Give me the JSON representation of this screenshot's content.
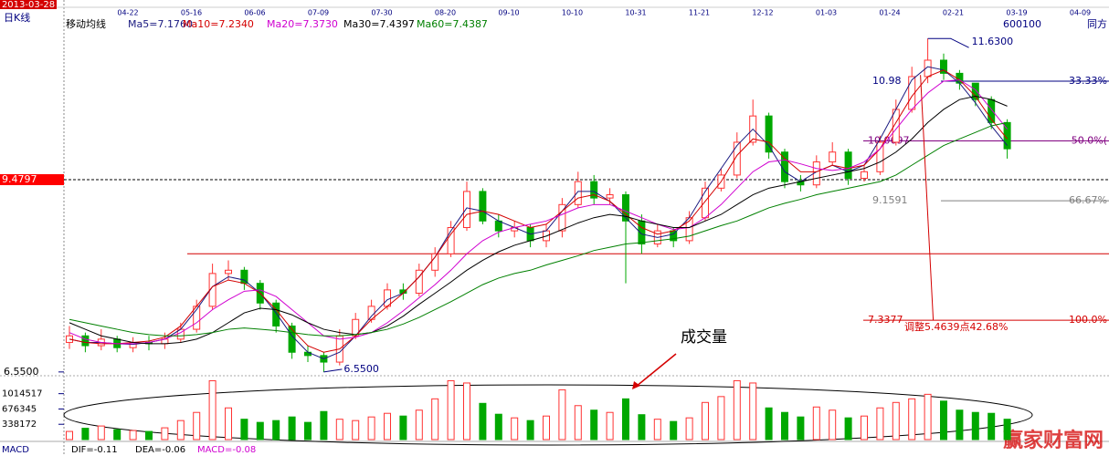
{
  "chart_data": {
    "type": "candlestick",
    "period": "日K线",
    "date": "2013-03-28",
    "ma_title": "移动均线",
    "code": "600100",
    "name": "同方",
    "x_labels": [
      "04-22",
      "05-16",
      "06-06",
      "07-09",
      "07-30",
      "08-20",
      "09-10",
      "10-10",
      "10-31",
      "11-21",
      "12-12",
      "01-03",
      "01-24",
      "02-21",
      "03-19",
      "04-09"
    ],
    "ylim": [
      6.52,
      11.8
    ],
    "yticks": [
      9.4797,
      {
        "value": 6.55,
        "label": "6.5500"
      }
    ],
    "up_color": "#ff3232",
    "down_color": "#00a800",
    "open": [
      7.0,
      7.1,
      6.95,
      7.05,
      6.92,
      7.0,
      6.98,
      7.05,
      7.2,
      7.55,
      8.05,
      8.1,
      7.9,
      7.6,
      7.25,
      6.85,
      6.8,
      6.7,
      7.1,
      7.35,
      7.55,
      7.8,
      7.75,
      8.1,
      8.35,
      8.75,
      9.3,
      8.85,
      8.7,
      8.75,
      8.55,
      8.7,
      9.1,
      9.45,
      9.2,
      9.25,
      8.85,
      8.5,
      8.7,
      8.55,
      8.9,
      9.35,
      9.55,
      10.05,
      10.45,
      9.9,
      9.45,
      9.4,
      9.75,
      9.9,
      9.5,
      9.6,
      10.05,
      10.55,
      11.05,
      11.3,
      11.1,
      10.95,
      10.7,
      10.35
    ],
    "high": [
      7.25,
      7.15,
      7.2,
      7.1,
      7.08,
      7.1,
      7.15,
      7.3,
      7.65,
      8.2,
      8.25,
      8.15,
      7.95,
      7.65,
      7.3,
      6.95,
      6.85,
      7.2,
      7.45,
      7.65,
      7.9,
      7.9,
      8.2,
      8.45,
      8.85,
      9.45,
      9.35,
      8.95,
      8.85,
      8.8,
      8.8,
      9.2,
      9.6,
      9.55,
      9.35,
      9.3,
      8.95,
      8.8,
      8.75,
      9.0,
      9.45,
      9.65,
      10.2,
      10.7,
      10.5,
      9.95,
      9.55,
      9.85,
      10.05,
      9.95,
      9.7,
      10.15,
      10.7,
      11.2,
      11.63,
      11.4,
      11.15,
      10.95,
      10.75,
      10.4
    ],
    "low": [
      6.9,
      6.85,
      6.88,
      6.85,
      6.85,
      6.88,
      6.9,
      7.0,
      7.15,
      7.5,
      7.95,
      7.8,
      7.5,
      7.15,
      6.75,
      6.7,
      6.55,
      6.65,
      7.05,
      7.3,
      7.5,
      7.65,
      7.7,
      8.0,
      8.3,
      8.7,
      8.8,
      8.6,
      8.6,
      8.45,
      8.45,
      8.6,
      9.05,
      9.1,
      9.1,
      7.9,
      8.35,
      8.45,
      8.45,
      8.5,
      8.85,
      9.3,
      9.5,
      10.0,
      9.8,
      9.35,
      9.3,
      9.35,
      9.7,
      9.4,
      9.45,
      9.55,
      10.0,
      10.5,
      10.95,
      11.0,
      10.85,
      10.6,
      10.25,
      9.8
    ],
    "close": [
      7.1,
      6.95,
      7.05,
      6.92,
      7.0,
      6.98,
      7.05,
      7.2,
      7.55,
      8.05,
      8.1,
      7.9,
      7.6,
      7.25,
      6.85,
      6.8,
      6.7,
      7.1,
      7.35,
      7.55,
      7.8,
      7.75,
      8.1,
      8.35,
      8.75,
      9.3,
      8.85,
      8.7,
      8.75,
      8.55,
      8.7,
      9.1,
      9.45,
      9.2,
      9.25,
      8.85,
      8.5,
      8.7,
      8.55,
      8.9,
      9.35,
      9.55,
      10.05,
      10.45,
      9.9,
      9.45,
      9.4,
      9.75,
      9.9,
      9.5,
      9.6,
      10.05,
      10.55,
      11.05,
      11.3,
      11.1,
      10.95,
      10.7,
      10.35,
      9.95
    ],
    "series": [
      {
        "name": "Ma5=7.1760",
        "color": "#1a1a80",
        "values": [
          7.05,
          7.0,
          7.0,
          6.98,
          6.97,
          7.0,
          7.05,
          7.2,
          7.5,
          7.85,
          8.0,
          7.95,
          7.75,
          7.45,
          7.1,
          6.85,
          6.75,
          6.85,
          7.1,
          7.4,
          7.65,
          7.75,
          8.0,
          8.3,
          8.7,
          9.05,
          9.0,
          8.85,
          8.75,
          8.65,
          8.7,
          9.0,
          9.3,
          9.3,
          9.15,
          8.9,
          8.65,
          8.6,
          8.65,
          8.9,
          9.3,
          9.65,
          10.0,
          10.25,
          10.0,
          9.6,
          9.45,
          9.6,
          9.7,
          9.6,
          9.7,
          10.1,
          10.55,
          11.0,
          11.2,
          11.15,
          10.95,
          10.65,
          10.3,
          10.0
        ]
      },
      {
        "name": "Ma10=7.2340",
        "color": "#d40000",
        "values": [
          7.05,
          7.0,
          6.98,
          6.98,
          7.0,
          7.02,
          7.08,
          7.25,
          7.55,
          7.85,
          7.95,
          7.9,
          7.75,
          7.5,
          7.2,
          6.95,
          6.85,
          6.9,
          7.1,
          7.35,
          7.55,
          7.75,
          8.0,
          8.3,
          8.65,
          8.95,
          9.0,
          8.95,
          8.85,
          8.75,
          8.8,
          9.0,
          9.2,
          9.25,
          9.15,
          8.95,
          8.75,
          8.65,
          8.7,
          8.85,
          9.15,
          9.45,
          9.85,
          10.1,
          10.05,
          9.8,
          9.6,
          9.6,
          9.7,
          9.65,
          9.7,
          9.95,
          10.35,
          10.75,
          11.05,
          11.15,
          11.0,
          10.75,
          10.4,
          10.1
        ]
      },
      {
        "name": "Ma20=7.3730",
        "color": "#d000d0",
        "values": [
          7.15,
          7.05,
          7.0,
          6.98,
          6.98,
          7.0,
          7.05,
          7.15,
          7.3,
          7.5,
          7.65,
          7.78,
          7.8,
          7.7,
          7.5,
          7.3,
          7.1,
          7.05,
          7.08,
          7.15,
          7.3,
          7.48,
          7.68,
          7.88,
          8.1,
          8.35,
          8.55,
          8.68,
          8.75,
          8.8,
          8.85,
          8.95,
          9.05,
          9.1,
          9.1,
          9.0,
          8.9,
          8.8,
          8.72,
          8.75,
          8.9,
          9.1,
          9.35,
          9.6,
          9.75,
          9.78,
          9.72,
          9.65,
          9.62,
          9.65,
          9.75,
          9.95,
          10.25,
          10.55,
          10.8,
          10.98,
          11.0,
          10.85,
          10.55,
          10.25
        ]
      },
      {
        "name": "Ma30=7.4397",
        "color": "#000000",
        "values": [
          7.3,
          7.2,
          7.1,
          7.05,
          7.0,
          6.98,
          6.98,
          7.0,
          7.05,
          7.15,
          7.3,
          7.45,
          7.52,
          7.5,
          7.42,
          7.3,
          7.2,
          7.15,
          7.12,
          7.15,
          7.25,
          7.4,
          7.58,
          7.75,
          7.92,
          8.1,
          8.25,
          8.38,
          8.48,
          8.55,
          8.62,
          8.72,
          8.82,
          8.9,
          8.95,
          8.92,
          8.85,
          8.8,
          8.75,
          8.75,
          8.85,
          8.95,
          9.1,
          9.25,
          9.35,
          9.4,
          9.45,
          9.5,
          9.55,
          9.6,
          9.65,
          9.75,
          9.9,
          10.1,
          10.35,
          10.55,
          10.7,
          10.75,
          10.7,
          10.6
        ]
      },
      {
        "name": "Ma60=7.4387",
        "color": "#008000",
        "values": [
          7.35,
          7.3,
          7.25,
          7.2,
          7.15,
          7.12,
          7.1,
          7.1,
          7.12,
          7.15,
          7.2,
          7.22,
          7.2,
          7.18,
          7.15,
          7.12,
          7.1,
          7.1,
          7.12,
          7.15,
          7.2,
          7.28,
          7.38,
          7.5,
          7.62,
          7.75,
          7.88,
          7.98,
          8.05,
          8.1,
          8.18,
          8.25,
          8.32,
          8.4,
          8.45,
          8.5,
          8.52,
          8.55,
          8.58,
          8.62,
          8.7,
          8.78,
          8.85,
          8.95,
          9.05,
          9.12,
          9.18,
          9.25,
          9.3,
          9.35,
          9.4,
          9.45,
          9.55,
          9.7,
          9.85,
          10.0,
          10.1,
          10.2,
          10.3,
          10.35
        ]
      }
    ],
    "support_level": 8.35,
    "high_label": {
      "value": 11.63,
      "label": "11.6300"
    },
    "low_label": {
      "value": 6.55,
      "label": "6.5500"
    },
    "fib": [
      {
        "price": 10.98,
        "pct": "33.33%",
        "color": "#000080"
      },
      {
        "price": 10.0697,
        "pct": "50.0%(",
        "color": "#800080"
      },
      {
        "price": 9.1591,
        "pct": "66.67%",
        "color": "#808080"
      },
      {
        "price": 7.3377,
        "pct": "100.0%",
        "color": "#d40000"
      }
    ],
    "adjust_text": "调整5.4639点42.68%",
    "volume": {
      "title": "成交量",
      "ylim": [
        0,
        1370000
      ],
      "yticks": [
        338172,
        676345,
        1014517
      ],
      "values": [
        180000,
        250000,
        300000,
        220000,
        200000,
        180000,
        260000,
        420000,
        600000,
        1300000,
        700000,
        450000,
        380000,
        420000,
        500000,
        380000,
        620000,
        450000,
        420000,
        500000,
        580000,
        520000,
        650000,
        900000,
        1300000,
        1250000,
        800000,
        560000,
        480000,
        420000,
        520000,
        1100000,
        750000,
        650000,
        600000,
        900000,
        550000,
        450000,
        400000,
        480000,
        820000,
        950000,
        1300000,
        1250000,
        700000,
        600000,
        500000,
        720000,
        650000,
        480000,
        520000,
        700000,
        820000,
        900000,
        1000000,
        850000,
        650000,
        600000,
        580000,
        450000
      ]
    },
    "macd": {
      "title": "MACD",
      "items": [
        "DIF=-0.11",
        "DEA=-0.06",
        "MACD=-0.08"
      ]
    },
    "watermark": "赢家财富网"
  }
}
